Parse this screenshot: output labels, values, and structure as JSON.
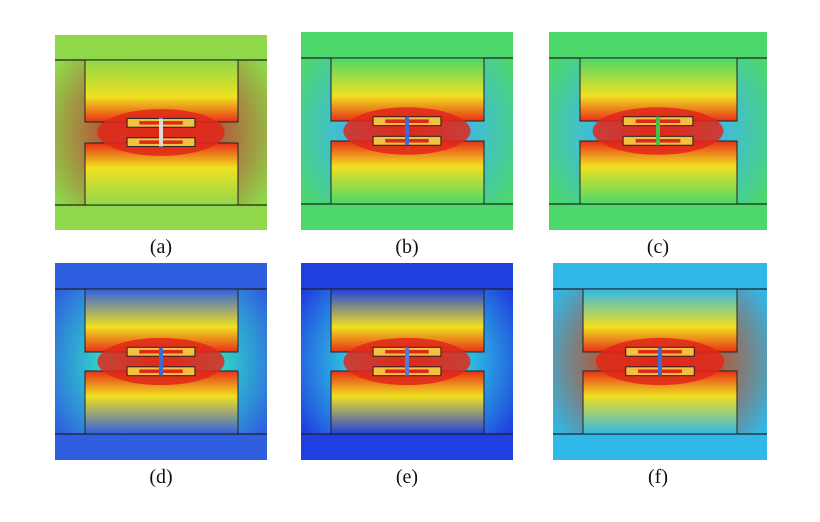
{
  "figure": {
    "panels": [
      {
        "label": "(a)",
        "outer": "#8fd84a",
        "cavity": "#b25a3a",
        "center": "#e0281a",
        "pattern": "halo-red",
        "strip": "#e0d8d8",
        "cavity_visible": true
      },
      {
        "label": "(b)",
        "outer": "#4cd86a",
        "cavity": "#3fb7e8",
        "center": "#e0281a",
        "pattern": "blue-gap",
        "strip": "#3c6ad8",
        "cavity_visible": true
      },
      {
        "label": "(c)",
        "outer": "#4cd86a",
        "cavity": "#3fb7e8",
        "center": "#e0281a",
        "pattern": "blue-gap",
        "strip": "#42c04a",
        "cavity_visible": true
      },
      {
        "label": "(d)",
        "outer": "#2f5fe0",
        "cavity": "#2fd8c8",
        "center": "#e0281a",
        "pattern": "cyan",
        "strip": "#3c6ad8",
        "cavity_visible": true
      },
      {
        "label": "(e)",
        "outer": "#1f3fe0",
        "cavity": "#2fc8e0",
        "center": "#e0281a",
        "pattern": "cyan-deep",
        "strip": "#5a7ad8",
        "cavity_visible": true
      },
      {
        "label": "(f)",
        "outer": "#2fb8e8",
        "cavity": "#b25a3a",
        "center": "#e0281a",
        "pattern": "halo-red",
        "strip": "#3c6ad8",
        "cavity_visible": true
      }
    ]
  }
}
